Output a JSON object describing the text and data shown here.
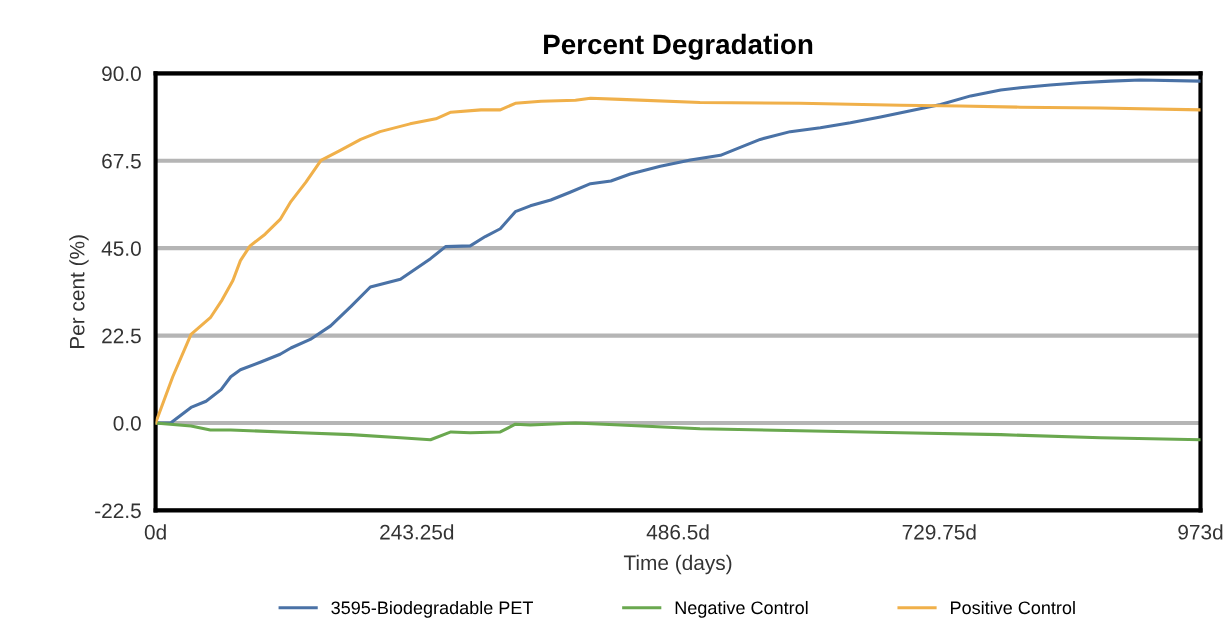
{
  "chart_data": {
    "type": "line",
    "title": "Percent Degradation",
    "xlabel": "Time (days)",
    "ylabel": "Per cent (%)",
    "xlim": [
      0,
      973
    ],
    "ylim": [
      -22.5,
      90
    ],
    "xticks": [
      {
        "value": 0,
        "label": "0d"
      },
      {
        "value": 243.25,
        "label": "243.25d"
      },
      {
        "value": 486.5,
        "label": "486.5d"
      },
      {
        "value": 729.75,
        "label": "729.75d"
      },
      {
        "value": 973,
        "label": "973d"
      }
    ],
    "yticks": [
      {
        "value": -22.5,
        "label": "-22.5"
      },
      {
        "value": 0,
        "label": "0.0"
      },
      {
        "value": 22.5,
        "label": "22.5"
      },
      {
        "value": 45,
        "label": "45.0"
      },
      {
        "value": 67.5,
        "label": "67.5"
      },
      {
        "value": 90,
        "label": "90.0"
      }
    ],
    "grid": "y",
    "legend": "bottom",
    "marker": "none",
    "line_style": "solid",
    "series": [
      {
        "name": "3595-Biodegradable PET",
        "color": "#4a72a6",
        "x": [
          0,
          14,
          33,
          47,
          61,
          70,
          79,
          98,
          116,
          126,
          144,
          163,
          182,
          200,
          228,
          256,
          270,
          293,
          307,
          321,
          335,
          349,
          368,
          386,
          405,
          424,
          442,
          470,
          498,
          526,
          545,
          563,
          591,
          619,
          647,
          675,
          703,
          731,
          759,
          787,
          805,
          833,
          861,
          889,
          917,
          973
        ],
        "values": [
          0,
          0,
          4,
          5.6,
          8.6,
          11.9,
          13.7,
          15.7,
          17.7,
          19.3,
          21.5,
          25,
          30,
          35,
          37,
          42.3,
          45.4,
          45.6,
          48,
          50,
          54.4,
          55.9,
          57.4,
          59.4,
          61.6,
          62.3,
          64.1,
          66.1,
          67.7,
          68.9,
          71,
          73,
          75,
          76,
          77.3,
          78.8,
          80.4,
          82,
          84.2,
          85.7,
          86.3,
          87,
          87.6,
          88,
          88.3,
          88
        ]
      },
      {
        "name": "Negative Control",
        "color": "#6aa84f",
        "x": [
          0,
          33,
          51,
          70,
          135,
          182,
          228,
          256,
          275,
          293,
          321,
          335,
          349,
          391,
          433,
          507,
          600,
          694,
          787,
          880,
          973
        ],
        "values": [
          0,
          -0.8,
          -1.8,
          -1.8,
          -2.5,
          -3,
          -3.8,
          -4.3,
          -2.3,
          -2.5,
          -2.3,
          -0.3,
          -0.5,
          0,
          -0.5,
          -1.5,
          -2,
          -2.5,
          -3,
          -3.8,
          -4.3
        ]
      },
      {
        "name": "Positive Control",
        "color": "#f0b04a",
        "x": [
          0,
          16,
          33,
          51,
          62,
          72,
          79,
          88,
          102,
          116,
          126,
          140,
          154,
          172,
          191,
          209,
          237,
          261,
          275,
          303,
          321,
          335,
          359,
          391,
          405,
          433,
          507,
          600,
          694,
          749,
          805,
          880,
          973
        ],
        "values": [
          0,
          11.9,
          22.8,
          27.1,
          31.7,
          36.7,
          41.8,
          45.6,
          48.6,
          52.4,
          57,
          62,
          67.6,
          70.2,
          73,
          75,
          77,
          78.3,
          80,
          80.6,
          80.6,
          82.3,
          82.8,
          83.1,
          83.6,
          83.3,
          82.5,
          82.3,
          81.8,
          81.6,
          81.3,
          81.1,
          80.6
        ]
      }
    ]
  }
}
